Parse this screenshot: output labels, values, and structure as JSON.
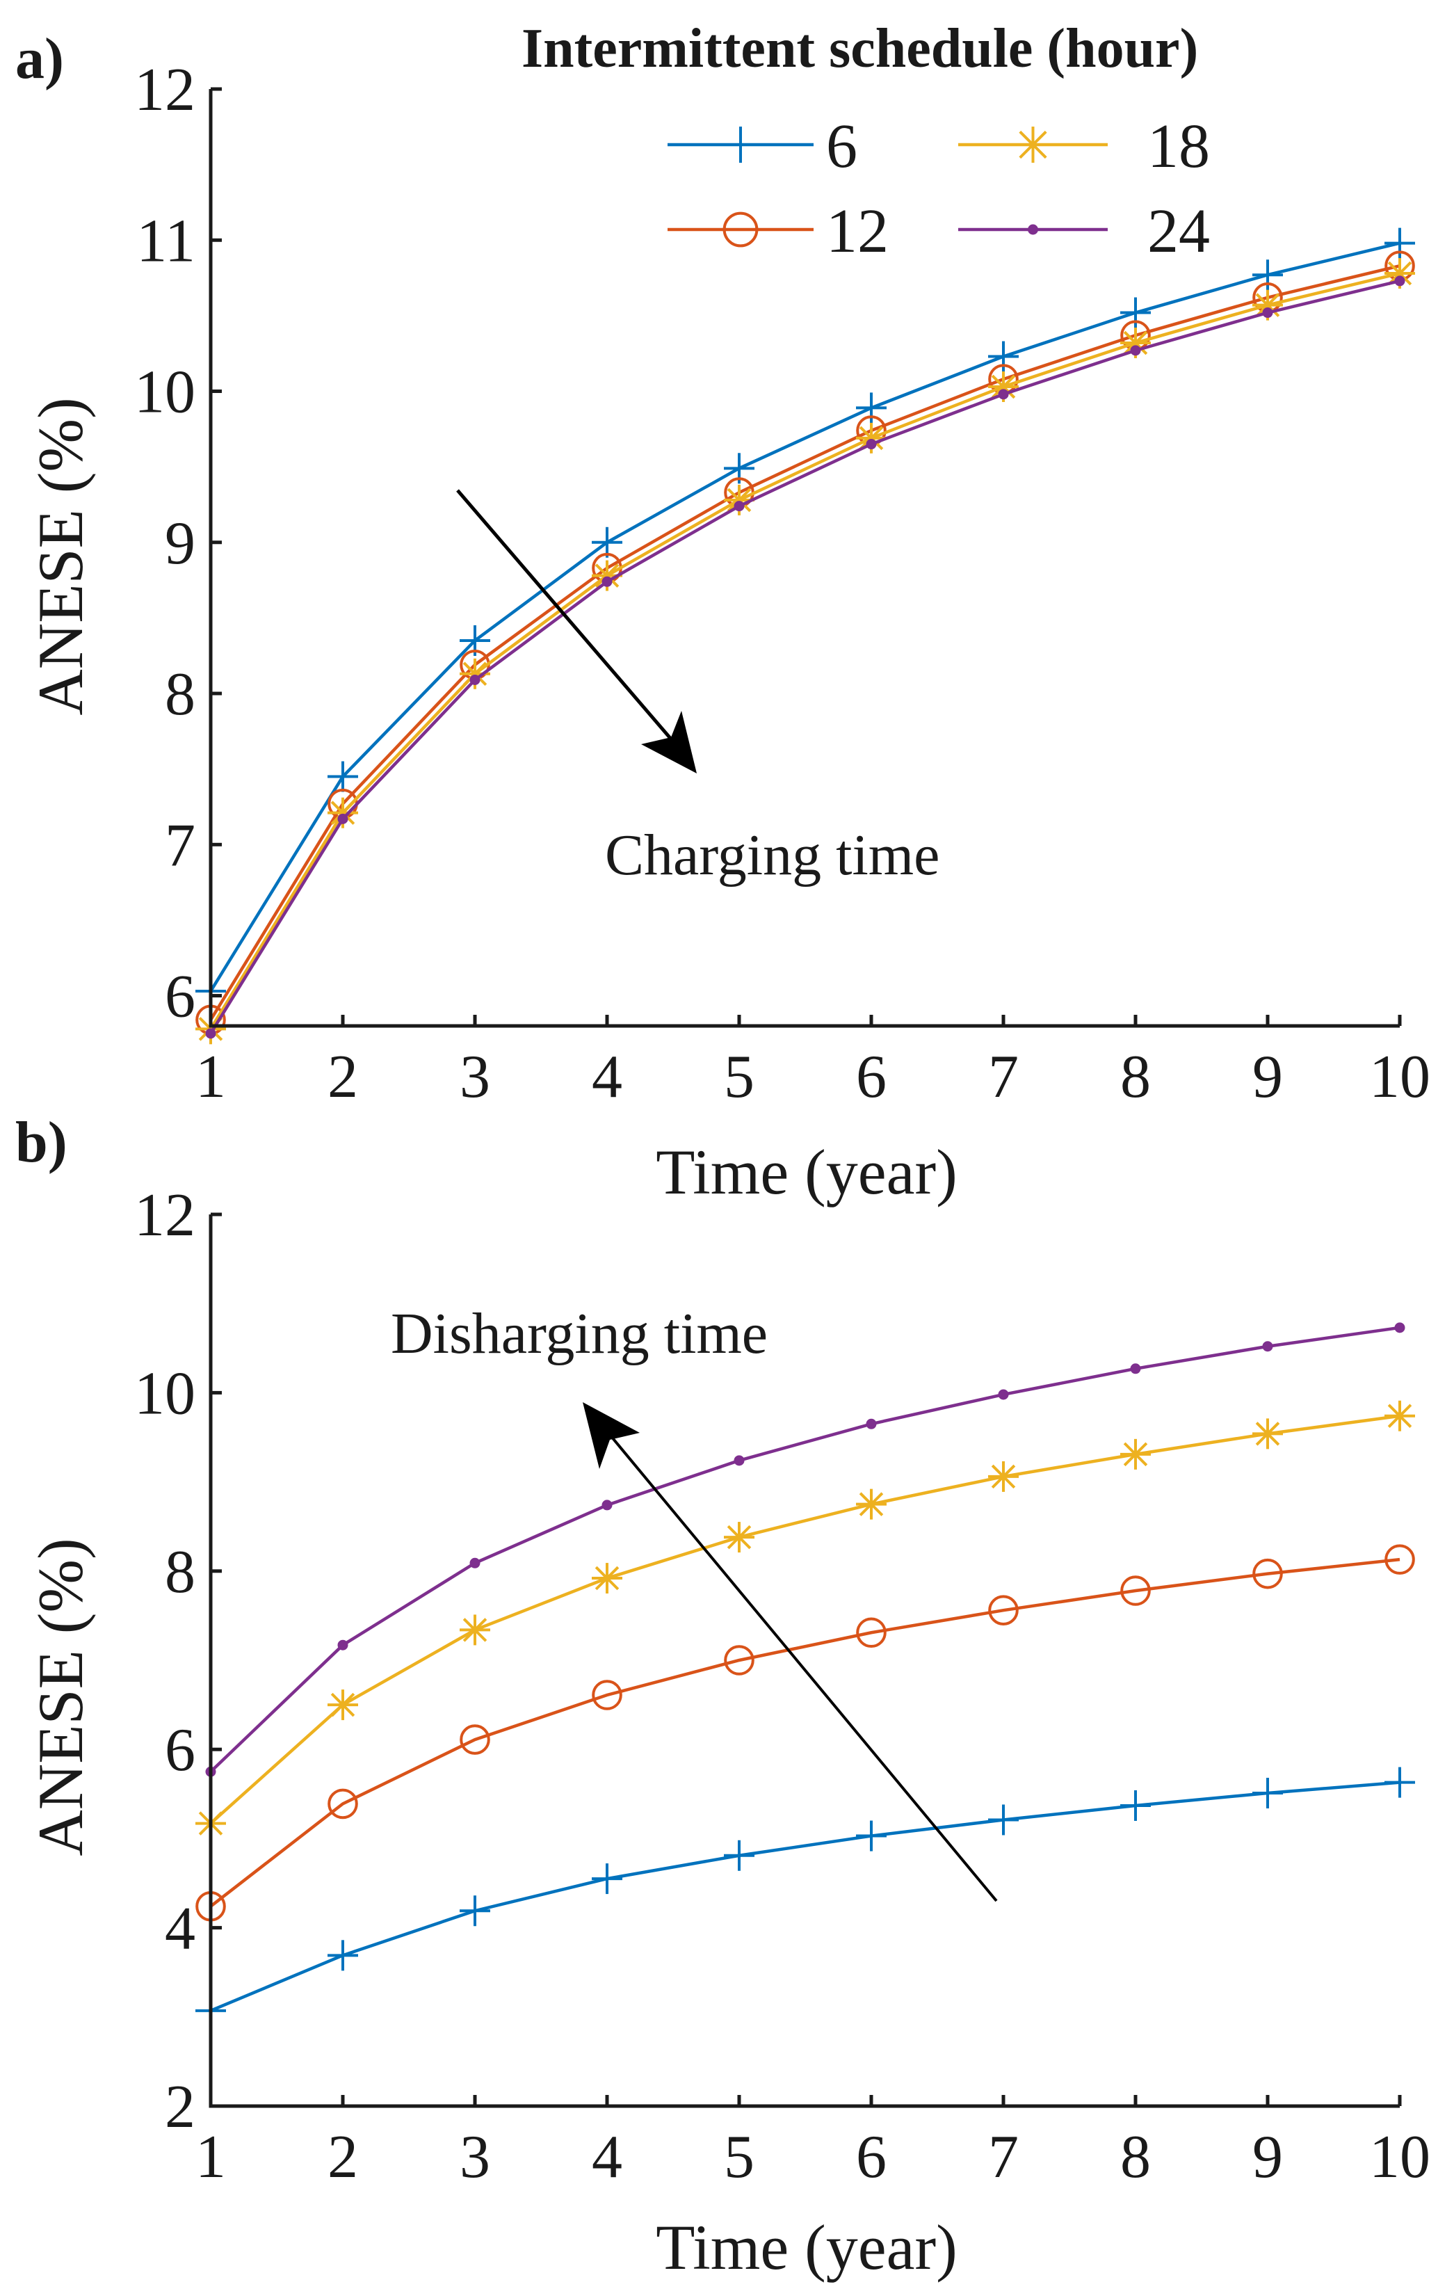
{
  "legend": {
    "title": "Intermittent schedule (hour)",
    "entries": [
      {
        "label": "6",
        "color": "#0072BD",
        "marker": "plus"
      },
      {
        "label": "18",
        "color": "#EDB120",
        "marker": "asterisk"
      },
      {
        "label": "12",
        "color": "#D95319",
        "marker": "circle"
      },
      {
        "label": "24",
        "color": "#7E2F8E",
        "marker": "dot"
      }
    ]
  },
  "chart_data": [
    {
      "panel": "a)",
      "type": "line",
      "xlabel": "Time (year)",
      "ylabel": "ANESE (%)",
      "x": [
        1,
        2,
        3,
        4,
        5,
        6,
        7,
        8,
        9,
        10
      ],
      "xlim": [
        1,
        10
      ],
      "ylim": [
        5.8,
        12
      ],
      "xticks": [
        1,
        2,
        3,
        4,
        5,
        6,
        7,
        8,
        9,
        10
      ],
      "yticks": [
        6,
        7,
        8,
        9,
        10,
        11,
        12
      ],
      "annotation": "Charging time",
      "series": [
        {
          "name": "6",
          "color": "#0072BD",
          "marker": "plus",
          "values": [
            6.03,
            7.45,
            8.35,
            9.0,
            9.49,
            9.89,
            10.23,
            10.52,
            10.77,
            10.98
          ]
        },
        {
          "name": "12",
          "color": "#D95319",
          "marker": "circle",
          "values": [
            5.84,
            7.27,
            8.19,
            8.83,
            9.33,
            9.74,
            10.08,
            10.37,
            10.62,
            10.83
          ]
        },
        {
          "name": "18",
          "color": "#EDB120",
          "marker": "asterisk",
          "values": [
            5.78,
            7.21,
            8.13,
            8.78,
            9.28,
            9.69,
            10.03,
            10.32,
            10.57,
            10.78
          ]
        },
        {
          "name": "24",
          "color": "#7E2F8E",
          "marker": "dot",
          "values": [
            5.75,
            7.17,
            8.09,
            8.74,
            9.24,
            9.65,
            9.98,
            10.27,
            10.52,
            10.73
          ]
        }
      ]
    },
    {
      "panel": "b)",
      "type": "line",
      "xlabel": "Time (year)",
      "ylabel": "ANESE (%)",
      "x": [
        1,
        2,
        3,
        4,
        5,
        6,
        7,
        8,
        9,
        10
      ],
      "xlim": [
        1,
        10
      ],
      "ylim": [
        2,
        12
      ],
      "xticks": [
        1,
        2,
        3,
        4,
        5,
        6,
        7,
        8,
        9,
        10
      ],
      "yticks": [
        2,
        4,
        6,
        8,
        10,
        12
      ],
      "annotation": "Disharging time",
      "series": [
        {
          "name": "6",
          "color": "#0072BD",
          "marker": "plus",
          "values": [
            3.07,
            3.69,
            4.19,
            4.55,
            4.81,
            5.03,
            5.21,
            5.37,
            5.51,
            5.63
          ]
        },
        {
          "name": "12",
          "color": "#D95319",
          "marker": "circle",
          "values": [
            4.24,
            5.39,
            6.11,
            6.61,
            7.0,
            7.31,
            7.56,
            7.78,
            7.97,
            8.13
          ]
        },
        {
          "name": "18",
          "color": "#EDB120",
          "marker": "asterisk",
          "values": [
            5.17,
            6.5,
            7.34,
            7.92,
            8.38,
            8.75,
            9.06,
            9.31,
            9.54,
            9.74
          ]
        },
        {
          "name": "24",
          "color": "#7E2F8E",
          "marker": "dot",
          "values": [
            5.75,
            7.17,
            8.09,
            8.74,
            9.24,
            9.65,
            9.98,
            10.27,
            10.52,
            10.73
          ]
        }
      ]
    }
  ]
}
